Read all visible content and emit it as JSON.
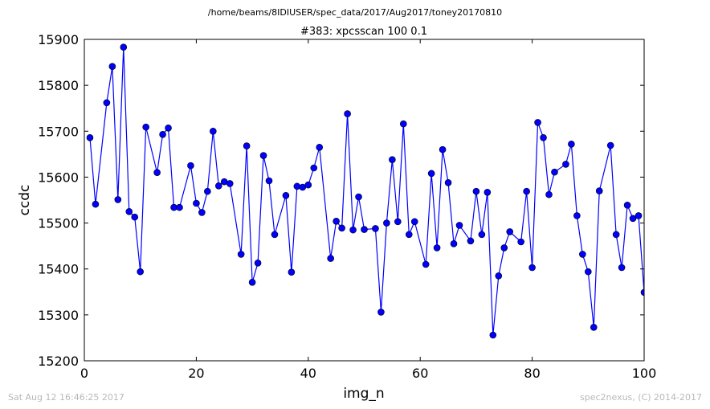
{
  "figure": {
    "supertitle": "/home/beams/8IDIUSER/spec_data/2017/Aug2017/toney20170810",
    "footer_left": "Sat Aug 12 16:46:25 2017",
    "footer_right": "spec2nexus, (C) 2014-2017"
  },
  "chart_data": {
    "type": "line",
    "title": "#383: xpcsscan 100 0.1",
    "xlabel": "img_n",
    "ylabel": "ccdc",
    "xlim": [
      0,
      100
    ],
    "ylim": [
      15200,
      15900
    ],
    "xticks": [
      0,
      20,
      40,
      60,
      80,
      100
    ],
    "yticks": [
      15200,
      15300,
      15400,
      15500,
      15600,
      15700,
      15800,
      15900
    ],
    "grid": false,
    "series_color": "#0000ff",
    "marker": "circle",
    "points": [
      [
        1,
        15686
      ],
      [
        2,
        15541
      ],
      [
        4,
        15762
      ],
      [
        5,
        15841
      ],
      [
        6,
        15551
      ],
      [
        7,
        15883
      ],
      [
        8,
        15525
      ],
      [
        9,
        15513
      ],
      [
        10,
        15394
      ],
      [
        11,
        15709
      ],
      [
        13,
        15610
      ],
      [
        14,
        15693
      ],
      [
        15,
        15707
      ],
      [
        16,
        15534
      ],
      [
        17,
        15534
      ],
      [
        19,
        15625
      ],
      [
        20,
        15543
      ],
      [
        21,
        15523
      ],
      [
        22,
        15569
      ],
      [
        23,
        15700
      ],
      [
        24,
        15581
      ],
      [
        25,
        15590
      ],
      [
        26,
        15586
      ],
      [
        28,
        15432
      ],
      [
        29,
        15668
      ],
      [
        30,
        15371
      ],
      [
        31,
        15413
      ],
      [
        32,
        15647
      ],
      [
        33,
        15592
      ],
      [
        34,
        15475
      ],
      [
        36,
        15560
      ],
      [
        37,
        15393
      ],
      [
        38,
        15580
      ],
      [
        39,
        15578
      ],
      [
        40,
        15583
      ],
      [
        41,
        15620
      ],
      [
        42,
        15665
      ],
      [
        44,
        15423
      ],
      [
        45,
        15504
      ],
      [
        46,
        15489
      ],
      [
        47,
        15738
      ],
      [
        48,
        15485
      ],
      [
        49,
        15557
      ],
      [
        50,
        15486
      ],
      [
        52,
        15488
      ],
      [
        53,
        15306
      ],
      [
        54,
        15500
      ],
      [
        55,
        15638
      ],
      [
        56,
        15503
      ],
      [
        57,
        15716
      ],
      [
        58,
        15475
      ],
      [
        59,
        15503
      ],
      [
        61,
        15410
      ],
      [
        62,
        15608
      ],
      [
        63,
        15446
      ],
      [
        64,
        15660
      ],
      [
        65,
        15588
      ],
      [
        66,
        15455
      ],
      [
        67,
        15495
      ],
      [
        69,
        15461
      ],
      [
        70,
        15569
      ],
      [
        71,
        15475
      ],
      [
        72,
        15567
      ],
      [
        73,
        15256
      ],
      [
        74,
        15385
      ],
      [
        75,
        15446
      ],
      [
        76,
        15481
      ],
      [
        78,
        15459
      ],
      [
        79,
        15569
      ],
      [
        80,
        15403
      ],
      [
        81,
        15719
      ],
      [
        82,
        15686
      ],
      [
        83,
        15562
      ],
      [
        84,
        15611
      ],
      [
        86,
        15628
      ],
      [
        87,
        15672
      ],
      [
        88,
        15516
      ],
      [
        89,
        15432
      ],
      [
        90,
        15394
      ],
      [
        91,
        15273
      ],
      [
        92,
        15570
      ],
      [
        94,
        15669
      ],
      [
        95,
        15475
      ],
      [
        96,
        15403
      ],
      [
        97,
        15539
      ],
      [
        98,
        15510
      ],
      [
        99,
        15516
      ],
      [
        100,
        15349
      ]
    ]
  }
}
